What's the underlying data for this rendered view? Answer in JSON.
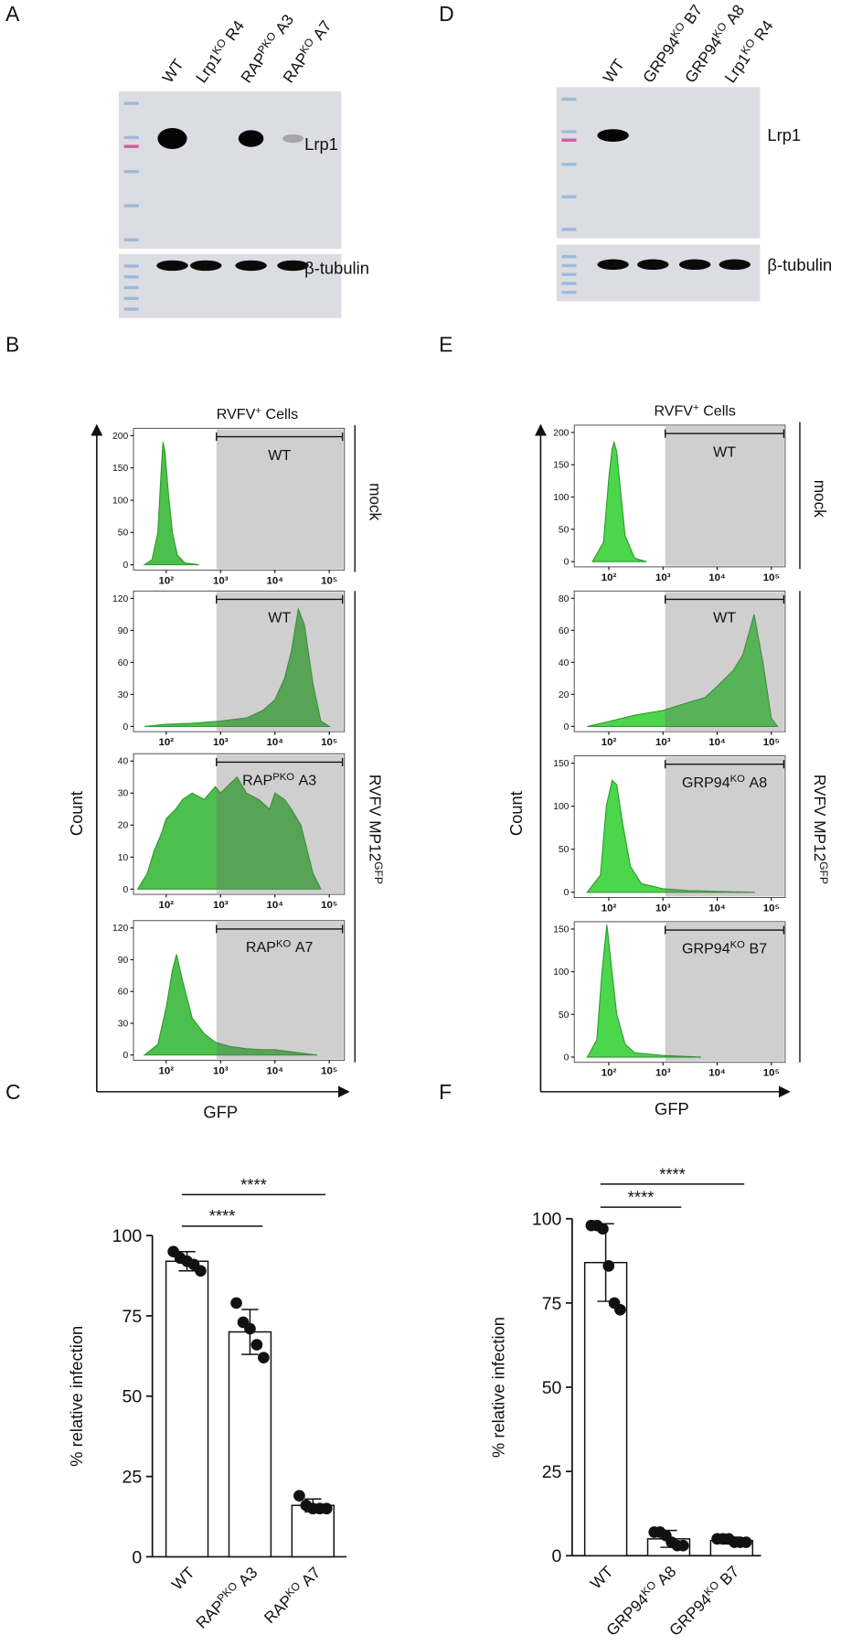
{
  "figure": {
    "panel_labels": [
      "A",
      "B",
      "C",
      "D",
      "E",
      "F"
    ],
    "blots": [
      {
        "lanes": [
          "WT",
          {
            "text": "Lrp1",
            "sup": "KO",
            "rest": "R4"
          },
          {
            "text": "RAP",
            "sup": "PKO",
            "rest": "A3"
          },
          {
            "text": "RAP",
            "sup": "KO",
            "rest": "A7"
          }
        ],
        "bands": [
          "Lrp1",
          "β-tubulin"
        ]
      },
      {
        "lanes": [
          "WT",
          {
            "text": "GRP94",
            "sup": "KO",
            "rest": "B7"
          },
          {
            "text": "GRP94",
            "sup": "KO",
            "rest": "A8"
          },
          {
            "text": "Lrp1",
            "sup": "KO",
            "rest": "R4"
          }
        ],
        "bands": [
          "Lrp1",
          "β-tubulin"
        ]
      }
    ],
    "flow": [
      {
        "gate_title": {
          "text": "RVFV",
          "sup": "+",
          "rest": "Cells"
        },
        "row_labels": [
          "mock",
          {
            "text": "RVFV MP12",
            "sup": "GFP"
          }
        ],
        "y_label": "Count",
        "x_label": "GFP"
      },
      {
        "gate_title": {
          "text": "RVFV",
          "sup": "+",
          "rest": "Cells"
        },
        "row_labels": [
          "mock",
          {
            "text": "RVFV MP12",
            "sup": "GFP"
          }
        ],
        "y_label": "Count",
        "x_label": "GFP"
      }
    ]
  },
  "chart_data": [
    {
      "type": "area",
      "sample": "WT",
      "color": "#4cbf4c",
      "log_x": true,
      "x": [
        40,
        55,
        70,
        80,
        87,
        95,
        110,
        130,
        160,
        220,
        400
      ],
      "values": [
        0,
        8,
        50,
        140,
        190,
        175,
        110,
        50,
        15,
        3,
        0
      ],
      "xlim": [
        25,
        190000
      ],
      "xticks": [
        {
          "value": 100,
          "label": "10²"
        },
        {
          "value": 1000,
          "label": "10³"
        },
        {
          "value": 10000,
          "label": "10⁴"
        },
        {
          "value": 100000,
          "label": "10⁵"
        }
      ],
      "ylim": [
        0,
        200
      ],
      "yticks": [
        0,
        50,
        100,
        150,
        200
      ],
      "gate": [
        840,
        175000
      ]
    },
    {
      "type": "area",
      "sample": "WT",
      "color": "#4cbf4c",
      "log_x": true,
      "x": [
        40,
        100,
        300,
        1000,
        3000,
        6000,
        10000,
        15000,
        20000,
        27000,
        35000,
        50000,
        70000,
        100000
      ],
      "values": [
        0,
        2,
        3,
        5,
        8,
        15,
        25,
        45,
        70,
        110,
        95,
        40,
        5,
        0
      ],
      "xlim": [
        25,
        190000
      ],
      "xticks": [
        {
          "value": 100,
          "label": "10²"
        },
        {
          "value": 1000,
          "label": "10³"
        },
        {
          "value": 10000,
          "label": "10⁴"
        },
        {
          "value": 100000,
          "label": "10⁵"
        }
      ],
      "ylim": [
        0,
        120
      ],
      "yticks": [
        0,
        30,
        60,
        90,
        120
      ],
      "gate": [
        840,
        175000
      ]
    },
    {
      "type": "area",
      "sample": {
        "text": "RAP",
        "sup": "PKO",
        "rest": "A3"
      },
      "color": "#4cbf4c",
      "log_x": true,
      "x": [
        30,
        45,
        60,
        80,
        100,
        150,
        200,
        300,
        500,
        800,
        1000,
        1500,
        2000,
        3000,
        5000,
        8000,
        10000,
        15000,
        20000,
        30000,
        50000,
        70000
      ],
      "values": [
        0,
        5,
        12,
        17,
        22,
        25,
        28,
        30,
        28,
        32,
        30,
        33,
        35,
        30,
        28,
        25,
        30,
        28,
        25,
        20,
        5,
        0
      ],
      "xlim": [
        25,
        190000
      ],
      "xticks": [
        {
          "value": 100,
          "label": "10²"
        },
        {
          "value": 1000,
          "label": "10³"
        },
        {
          "value": 10000,
          "label": "10⁴"
        },
        {
          "value": 100000,
          "label": "10⁵"
        }
      ],
      "ylim": [
        0,
        40
      ],
      "yticks": [
        0,
        10,
        20,
        30,
        40
      ],
      "gate": [
        840,
        175000
      ]
    },
    {
      "type": "area",
      "sample": {
        "text": "RAP",
        "sup": "KO",
        "rest": "A7"
      },
      "color": "#4cbf4c",
      "log_x": true,
      "x": [
        40,
        70,
        100,
        130,
        155,
        200,
        300,
        500,
        800,
        1500,
        3000,
        6000,
        10000,
        20000,
        40000,
        60000
      ],
      "values": [
        0,
        10,
        45,
        80,
        95,
        70,
        35,
        20,
        12,
        8,
        6,
        5,
        5,
        3,
        1,
        0
      ],
      "xlim": [
        25,
        190000
      ],
      "xticks": [
        {
          "value": 100,
          "label": "10²"
        },
        {
          "value": 1000,
          "label": "10³"
        },
        {
          "value": 10000,
          "label": "10⁴"
        },
        {
          "value": 100000,
          "label": "10⁵"
        }
      ],
      "ylim": [
        0,
        120
      ],
      "yticks": [
        0,
        30,
        60,
        90,
        120
      ],
      "gate": [
        840,
        175000
      ]
    },
    {
      "type": "area",
      "sample": "WT",
      "color": "#4cd64c",
      "log_x": true,
      "x": [
        50,
        80,
        100,
        115,
        125,
        140,
        160,
        200,
        300,
        500
      ],
      "values": [
        0,
        30,
        130,
        175,
        185,
        170,
        120,
        40,
        5,
        0
      ],
      "xlim": [
        23,
        180000
      ],
      "xticks": [
        {
          "value": 100,
          "label": "10²"
        },
        {
          "value": 1000,
          "label": "10³"
        },
        {
          "value": 10000,
          "label": "10⁴"
        },
        {
          "value": 100000,
          "label": "10⁵"
        }
      ],
      "ylim": [
        0,
        200
      ],
      "yticks": [
        0,
        50,
        100,
        150,
        200
      ],
      "gate": [
        1100,
        170000
      ]
    },
    {
      "type": "area",
      "sample": "WT",
      "color": "#4cd64c",
      "log_x": true,
      "x": [
        40,
        100,
        300,
        1000,
        3000,
        6000,
        10000,
        20000,
        30000,
        48000,
        70000,
        100000,
        130000
      ],
      "values": [
        0,
        3,
        7,
        10,
        15,
        18,
        25,
        35,
        45,
        70,
        40,
        5,
        0
      ],
      "xlim": [
        23,
        180000
      ],
      "xticks": [
        {
          "value": 100,
          "label": "10²"
        },
        {
          "value": 1000,
          "label": "10³"
        },
        {
          "value": 10000,
          "label": "10⁴"
        },
        {
          "value": 100000,
          "label": "10⁵"
        }
      ],
      "ylim": [
        0,
        80
      ],
      "yticks": [
        0,
        20,
        40,
        60,
        80
      ],
      "gate": [
        1100,
        170000
      ]
    },
    {
      "type": "area",
      "sample": {
        "text": "GRP94",
        "sup": "KO",
        "rest": "A8"
      },
      "color": "#4cd64c",
      "log_x": true,
      "x": [
        40,
        70,
        90,
        115,
        140,
        180,
        250,
        400,
        1000,
        3000,
        10000,
        50000
      ],
      "values": [
        0,
        20,
        100,
        130,
        125,
        80,
        30,
        10,
        4,
        2,
        1,
        0
      ],
      "xlim": [
        23,
        180000
      ],
      "xticks": [
        {
          "value": 100,
          "label": "10²"
        },
        {
          "value": 1000,
          "label": "10³"
        },
        {
          "value": 10000,
          "label": "10⁴"
        },
        {
          "value": 100000,
          "label": "10⁵"
        }
      ],
      "ylim": [
        0,
        150
      ],
      "yticks": [
        0,
        50,
        100,
        150
      ],
      "gate": [
        1100,
        170000
      ]
    },
    {
      "type": "area",
      "sample": {
        "text": "GRP94",
        "sup": "KO",
        "rest": "B7"
      },
      "color": "#4cd64c",
      "log_x": true,
      "x": [
        40,
        60,
        75,
        92,
        110,
        140,
        200,
        300,
        1000,
        5000
      ],
      "values": [
        0,
        20,
        100,
        155,
        110,
        50,
        15,
        5,
        2,
        0
      ],
      "xlim": [
        23,
        180000
      ],
      "xticks": [
        {
          "value": 100,
          "label": "10²"
        },
        {
          "value": 1000,
          "label": "10³"
        },
        {
          "value": 10000,
          "label": "10⁴"
        },
        {
          "value": 100000,
          "label": "10⁵"
        }
      ],
      "ylim": [
        0,
        150
      ],
      "yticks": [
        0,
        50,
        100,
        150
      ],
      "gate": [
        1100,
        170000
      ]
    },
    {
      "type": "bar",
      "y_label": "% relative infection",
      "color": "#ffffff",
      "categories": [
        "WT",
        {
          "text": "RAP",
          "sup": "PKO",
          "rest": "A3"
        },
        {
          "text": "RAP",
          "sup": "KO",
          "rest": "A7"
        }
      ],
      "values": [
        92,
        70,
        16
      ],
      "errors": [
        3,
        7,
        2
      ],
      "points": [
        [
          95,
          93,
          92,
          91,
          89
        ],
        [
          79,
          73,
          71,
          66,
          62
        ],
        [
          19,
          16,
          15,
          15,
          15
        ]
      ],
      "ylim": [
        0,
        100
      ],
      "yticks": [
        0,
        25,
        50,
        75,
        100
      ],
      "comparisons": [
        {
          "pair": [
            0,
            1
          ],
          "label": "****"
        },
        {
          "pair": [
            0,
            2
          ],
          "label": "****"
        }
      ]
    },
    {
      "type": "bar",
      "y_label": "% relative infection",
      "color": "#ffffff",
      "categories": [
        "WT",
        {
          "text": "GRP94",
          "sup": "KO",
          "rest": "A8"
        },
        {
          "text": "GRP94",
          "sup": "KO",
          "rest": "B7"
        }
      ],
      "values": [
        87,
        5,
        4.5
      ],
      "errors": [
        11.5,
        2.5,
        1
      ],
      "points": [
        [
          98,
          98,
          97,
          86,
          75,
          73
        ],
        [
          7,
          7,
          6,
          4,
          3,
          3
        ],
        [
          5,
          5,
          5,
          4,
          4,
          4
        ]
      ],
      "ylim": [
        0,
        100
      ],
      "yticks": [
        0,
        25,
        50,
        75,
        100
      ],
      "comparisons": [
        {
          "pair": [
            0,
            1
          ],
          "label": "****"
        },
        {
          "pair": [
            0,
            2
          ],
          "label": "****"
        }
      ]
    }
  ]
}
